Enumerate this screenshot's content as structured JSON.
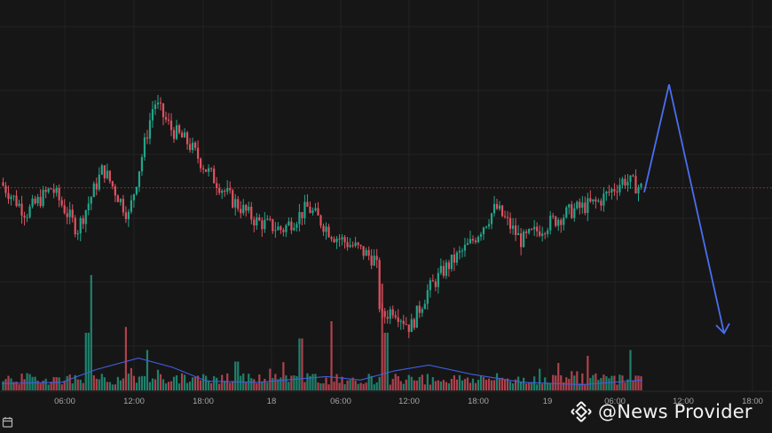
{
  "watermark": {
    "text": "@News Provider",
    "icon": "binance-logo-icon"
  },
  "colors": {
    "up": "#22a58a",
    "down": "#e05260",
    "volume_ma": "#3f5fe0",
    "arrow": "#4b6ef0",
    "last_price_line": "#c94a4a",
    "grid": "#232323",
    "background": "#161616"
  },
  "chart_data": {
    "type": "candlestick",
    "title": "",
    "grid": true,
    "x_ticks": [
      "06:00",
      "12:00",
      "18:00",
      "18",
      "06:00",
      "12:00",
      "18:00",
      "19",
      "06:00",
      "12:00",
      "18:00"
    ],
    "price_path": [
      {
        "t": 0,
        "p": 0.57
      },
      {
        "t": 6,
        "p": 0.46
      },
      {
        "t": 12,
        "p": 0.55
      },
      {
        "t": 18,
        "p": 0.4
      },
      {
        "t": 24,
        "p": 0.62
      },
      {
        "t": 30,
        "p": 0.45
      },
      {
        "t": 36,
        "p": 0.86
      },
      {
        "t": 40,
        "p": 0.76
      },
      {
        "t": 44,
        "p": 0.71
      },
      {
        "t": 48,
        "p": 0.62
      },
      {
        "t": 54,
        "p": 0.51
      },
      {
        "t": 60,
        "p": 0.43
      },
      {
        "t": 66,
        "p": 0.4
      },
      {
        "t": 72,
        "p": 0.48
      },
      {
        "t": 78,
        "p": 0.38
      },
      {
        "t": 84,
        "p": 0.33
      },
      {
        "t": 88,
        "p": 0.29
      },
      {
        "t": 89,
        "p": 0.08
      },
      {
        "t": 92,
        "p": 0.12
      },
      {
        "t": 96,
        "p": 0.05
      },
      {
        "t": 100,
        "p": 0.18
      },
      {
        "t": 104,
        "p": 0.26
      },
      {
        "t": 110,
        "p": 0.35
      },
      {
        "t": 116,
        "p": 0.48
      },
      {
        "t": 122,
        "p": 0.36
      },
      {
        "t": 128,
        "p": 0.42
      },
      {
        "t": 134,
        "p": 0.47
      },
      {
        "t": 140,
        "p": 0.5
      },
      {
        "t": 146,
        "p": 0.58
      },
      {
        "t": 150,
        "p": 0.55
      }
    ],
    "last_price": 0.55,
    "volume_spikes": [
      {
        "t": 21,
        "v": 1.0
      },
      {
        "t": 20,
        "v": 0.5
      },
      {
        "t": 29,
        "v": 0.55
      },
      {
        "t": 34,
        "v": 0.35
      },
      {
        "t": 55,
        "v": 0.25
      },
      {
        "t": 70,
        "v": 0.45
      },
      {
        "t": 77,
        "v": 0.6
      },
      {
        "t": 89,
        "v": 0.8
      },
      {
        "t": 90,
        "v": 0.5
      },
      {
        "t": 137,
        "v": 0.3
      },
      {
        "t": 147,
        "v": 0.35
      }
    ],
    "volume_ma": [
      {
        "t": 0,
        "v": 0.06
      },
      {
        "t": 14,
        "v": 0.07
      },
      {
        "t": 22,
        "v": 0.18
      },
      {
        "t": 32,
        "v": 0.28
      },
      {
        "t": 40,
        "v": 0.2
      },
      {
        "t": 48,
        "v": 0.08
      },
      {
        "t": 60,
        "v": 0.07
      },
      {
        "t": 76,
        "v": 0.12
      },
      {
        "t": 84,
        "v": 0.09
      },
      {
        "t": 92,
        "v": 0.17
      },
      {
        "t": 100,
        "v": 0.22
      },
      {
        "t": 110,
        "v": 0.14
      },
      {
        "t": 122,
        "v": 0.07
      },
      {
        "t": 136,
        "v": 0.05
      },
      {
        "t": 150,
        "v": 0.09
      }
    ],
    "projection": {
      "peak": 0.92,
      "target": 0.03
    }
  }
}
